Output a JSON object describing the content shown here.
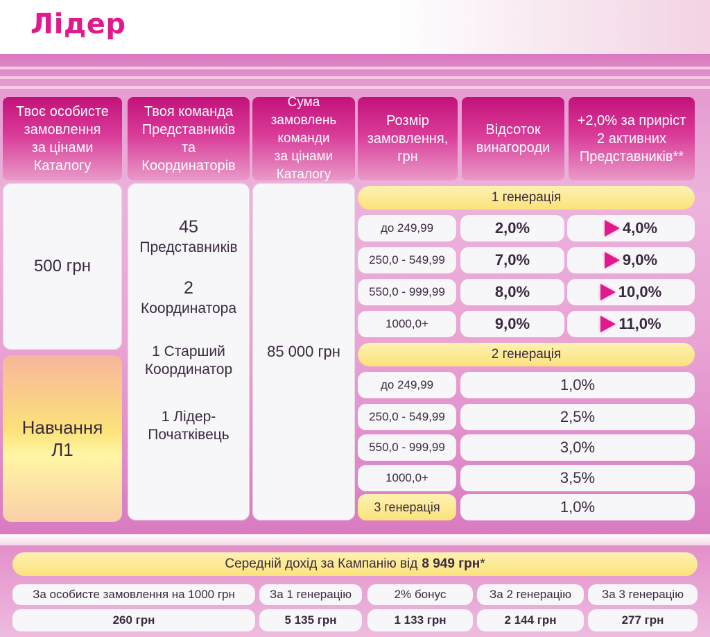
{
  "title": "Лідер",
  "headers": [
    "Твоє особисте\nзамовлення\nза цінами\nКаталогу",
    "Твоя команда\nПредставників\nта\nКоординаторів",
    "Сума замовлень\nкоманди\nза цінами\nКаталогу",
    "Розмір\nзамовлення,\nгрн",
    "Відсоток\nвинагороди",
    "+2,0% за приріст\n2 активних\nПредставників**"
  ],
  "personal_order": "500 грн",
  "training": "Навчання\nЛ1",
  "team": {
    "reps_count": "45",
    "reps_label": "Представників",
    "coord_count": "2",
    "coord_label": "Координатора",
    "senior": "1 Старший\nКоординатор",
    "leader": "1 Лідер-\nПочатківець"
  },
  "team_sum": "85 000 грн",
  "gen1": {
    "label": "1 генерація",
    "rows": [
      {
        "range": "до 249,99",
        "pct": "2,0%",
        "boost": "4,0%"
      },
      {
        "range": "250,0 - 549,99",
        "pct": "7,0%",
        "boost": "9,0%"
      },
      {
        "range": "550,0 - 999,99",
        "pct": "8,0%",
        "boost": "10,0%"
      },
      {
        "range": "1000,0+",
        "pct": "9,0%",
        "boost": "11,0%"
      }
    ]
  },
  "gen2": {
    "label": "2 генерація",
    "rows": [
      {
        "range": "до 249,99",
        "pct": "1,0%"
      },
      {
        "range": "250,0 - 549,99",
        "pct": "2,5%"
      },
      {
        "range": "550,0 - 999,99",
        "pct": "3,0%"
      },
      {
        "range": "1000,0+",
        "pct": "3,5%"
      }
    ]
  },
  "gen3": {
    "label": "3 генерація",
    "pct": "1,0%"
  },
  "income": {
    "prefix": "Середній дохід за Кампанію від",
    "amount": "8 949 грн",
    "suffix": "*",
    "labels": [
      "За особисте замовлення на 1000 грн",
      "За 1 генерацію",
      "2% бонус",
      "За 2 генерацію",
      "За 3 генерацію"
    ],
    "values": [
      "260 грн",
      "5 135 грн",
      "1 133 грн",
      "2 144 грн",
      "277 грн"
    ]
  },
  "colors": {
    "accent": "#e01a8c",
    "header_pink": "#c2127a",
    "yellow": "#fbe27b"
  }
}
